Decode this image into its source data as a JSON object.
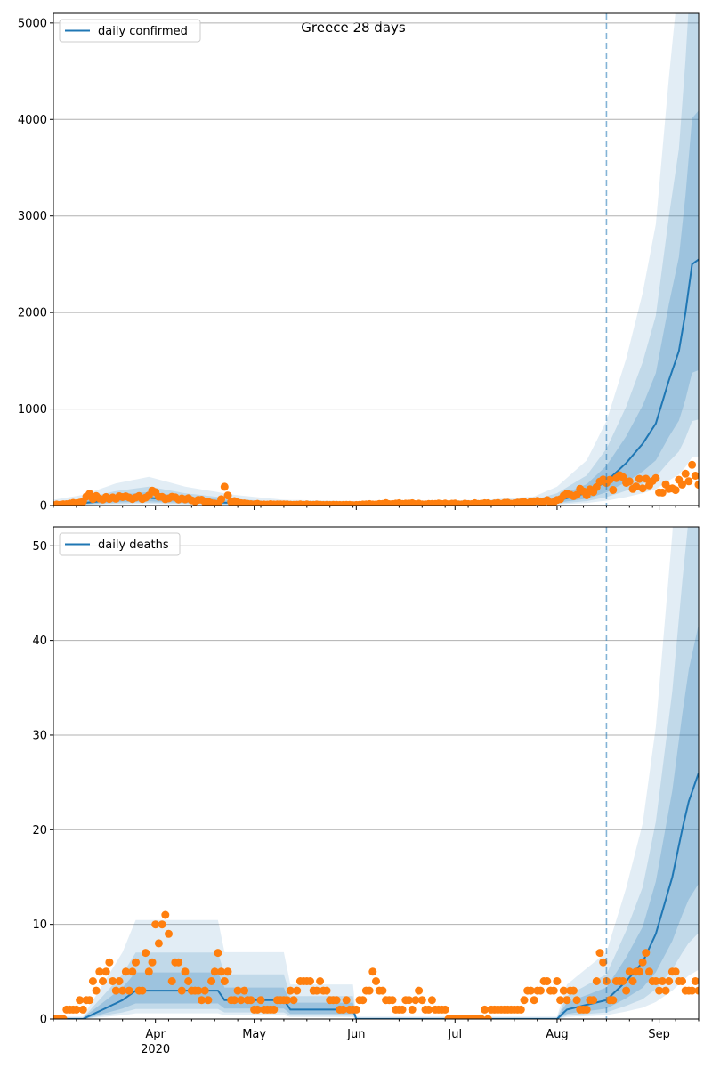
{
  "figure_title": "Greece 28 days",
  "colors": {
    "model_line": "#1f77b4",
    "observed_points": "#ff7f0e",
    "band": "#1f77b4",
    "grid": "#b0b0b0",
    "divider": "#1f77b4"
  },
  "chart_data": [
    {
      "type": "line",
      "legend": "daily confirmed",
      "legend_position": "top-left",
      "grid": "horizontal",
      "x_axis": {
        "type": "date",
        "range": [
          "2020-03-01",
          "2020-09-13"
        ],
        "major_ticks": [
          {
            "date": "2020-04-01",
            "label": "Apr"
          },
          {
            "date": "2020-05-01",
            "label": "May"
          },
          {
            "date": "2020-06-01",
            "label": "Jun"
          },
          {
            "date": "2020-07-01",
            "label": "Jul"
          },
          {
            "date": "2020-08-01",
            "label": "Aug"
          },
          {
            "date": "2020-09-01",
            "label": "Sep"
          }
        ],
        "year_label": "2020"
      },
      "y_axis": {
        "range": [
          0,
          5100
        ],
        "ticks": [
          0,
          1000,
          2000,
          3000,
          4000,
          5000
        ]
      },
      "forecast_start": "2020-08-16",
      "model_anchors": [
        [
          "2020-03-01",
          10
        ],
        [
          "2020-03-10",
          25
        ],
        [
          "2020-03-20",
          60
        ],
        [
          "2020-03-30",
          80
        ],
        [
          "2020-04-10",
          50
        ],
        [
          "2020-04-25",
          25
        ],
        [
          "2020-05-10",
          10
        ],
        [
          "2020-06-10",
          5
        ],
        [
          "2020-07-10",
          10
        ],
        [
          "2020-07-25",
          20
        ],
        [
          "2020-08-01",
          50
        ],
        [
          "2020-08-10",
          130
        ],
        [
          "2020-08-16",
          250
        ],
        [
          "2020-08-22",
          440
        ],
        [
          "2020-08-27",
          640
        ],
        [
          "2020-08-31",
          850
        ],
        [
          "2020-09-04",
          1300
        ],
        [
          "2020-09-07",
          1600
        ],
        [
          "2020-09-09",
          2000
        ],
        [
          "2020-09-11",
          2500
        ],
        [
          "2020-09-13",
          2550
        ]
      ],
      "band_scales": {
        "inner": [
          0.55,
          1.6
        ],
        "middle": [
          0.35,
          2.3
        ],
        "outer": [
          0.2,
          3.4
        ]
      },
      "observed_anchors": [
        [
          "2020-03-01",
          5
        ],
        [
          "2020-03-05",
          15
        ],
        [
          "2020-03-10",
          40
        ],
        [
          "2020-03-12",
          100
        ],
        [
          "2020-03-15",
          60
        ],
        [
          "2020-03-20",
          80
        ],
        [
          "2020-03-25",
          90
        ],
        [
          "2020-04-01",
          120
        ],
        [
          "2020-04-05",
          70
        ],
        [
          "2020-04-15",
          50
        ],
        [
          "2020-04-20",
          20
        ],
        [
          "2020-04-22",
          160
        ],
        [
          "2020-04-24",
          40
        ],
        [
          "2020-05-01",
          15
        ],
        [
          "2020-05-15",
          10
        ],
        [
          "2020-06-01",
          5
        ],
        [
          "2020-06-10",
          20
        ],
        [
          "2020-07-01",
          15
        ],
        [
          "2020-07-20",
          25
        ],
        [
          "2020-08-01",
          50
        ],
        [
          "2020-08-05",
          110
        ],
        [
          "2020-08-10",
          150
        ],
        [
          "2020-08-15",
          230
        ],
        [
          "2020-08-20",
          250
        ],
        [
          "2020-08-27",
          200
        ],
        [
          "2020-08-31",
          230
        ],
        [
          "2020-09-04",
          150
        ],
        [
          "2020-09-08",
          280
        ],
        [
          "2020-09-10",
          350
        ],
        [
          "2020-09-13",
          250
        ]
      ]
    },
    {
      "type": "line",
      "legend": "daily deaths",
      "legend_position": "top-left",
      "grid": "horizontal",
      "x_axis": {
        "type": "date",
        "range": [
          "2020-03-01",
          "2020-09-13"
        ],
        "major_ticks": [
          {
            "date": "2020-04-01",
            "label": "Apr"
          },
          {
            "date": "2020-05-01",
            "label": "May"
          },
          {
            "date": "2020-06-01",
            "label": "Jun"
          },
          {
            "date": "2020-07-01",
            "label": "Jul"
          },
          {
            "date": "2020-08-01",
            "label": "Aug"
          },
          {
            "date": "2020-09-01",
            "label": "Sep"
          }
        ],
        "year_label": "2020"
      },
      "y_axis": {
        "range": [
          0,
          52
        ],
        "ticks": [
          0,
          10,
          20,
          30,
          40,
          50
        ]
      },
      "forecast_start": "2020-08-16",
      "model_anchors": [
        [
          "2020-03-01",
          0
        ],
        [
          "2020-03-10",
          0
        ],
        [
          "2020-03-16",
          1
        ],
        [
          "2020-03-22",
          2
        ],
        [
          "2020-03-26",
          3
        ],
        [
          "2020-04-10",
          3
        ],
        [
          "2020-04-20",
          3
        ],
        [
          "2020-04-22",
          2
        ],
        [
          "2020-05-10",
          2
        ],
        [
          "2020-05-12",
          1
        ],
        [
          "2020-05-31",
          1
        ],
        [
          "2020-06-01",
          0
        ],
        [
          "2020-08-01",
          0
        ],
        [
          "2020-08-04",
          1
        ],
        [
          "2020-08-16",
          2
        ],
        [
          "2020-08-22",
          4
        ],
        [
          "2020-08-27",
          6
        ],
        [
          "2020-08-31",
          9
        ],
        [
          "2020-09-05",
          15
        ],
        [
          "2020-09-08",
          20
        ],
        [
          "2020-09-10",
          23
        ],
        [
          "2020-09-13",
          26
        ]
      ],
      "band_scales": {
        "inner": [
          0.55,
          1.6
        ],
        "middle": [
          0.35,
          2.3
        ],
        "outer": [
          0.2,
          3.4
        ]
      },
      "observed_anchors": [
        [
          "2020-03-01",
          0
        ],
        [
          "2020-03-08",
          1
        ],
        [
          "2020-03-12",
          2
        ],
        [
          "2020-03-17",
          7
        ],
        [
          "2020-03-20",
          3
        ],
        [
          "2020-03-25",
          4
        ],
        [
          "2020-03-30",
          6
        ],
        [
          "2020-04-03",
          10
        ],
        [
          "2020-04-06",
          6
        ],
        [
          "2020-04-10",
          4
        ],
        [
          "2020-04-15",
          2
        ],
        [
          "2020-04-20",
          5
        ],
        [
          "2020-04-23",
          4
        ],
        [
          "2020-04-28",
          2
        ],
        [
          "2020-05-05",
          1
        ],
        [
          "2020-05-15",
          3
        ],
        [
          "2020-05-18",
          4
        ],
        [
          "2020-05-25",
          2
        ],
        [
          "2020-06-01",
          1
        ],
        [
          "2020-06-05",
          4
        ],
        [
          "2020-06-15",
          1
        ],
        [
          "2020-06-20",
          2
        ],
        [
          "2020-07-01",
          0
        ],
        [
          "2020-07-20",
          1
        ],
        [
          "2020-07-25",
          3
        ],
        [
          "2020-08-01",
          3
        ],
        [
          "2020-08-10",
          1
        ],
        [
          "2020-08-14",
          5
        ],
        [
          "2020-08-18",
          3
        ],
        [
          "2020-08-25",
          5
        ],
        [
          "2020-08-27",
          6
        ],
        [
          "2020-08-31",
          4
        ],
        [
          "2020-09-04",
          4
        ],
        [
          "2020-09-07",
          5
        ],
        [
          "2020-09-10",
          3
        ],
        [
          "2020-09-13",
          3
        ]
      ]
    }
  ]
}
